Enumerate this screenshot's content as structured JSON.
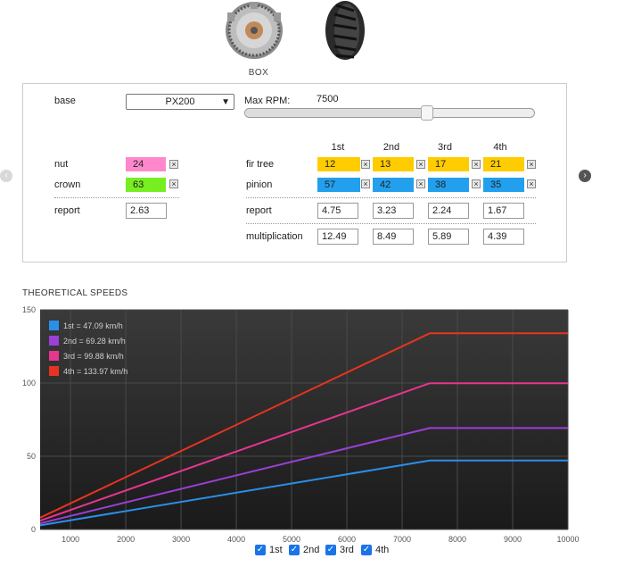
{
  "box_title": "BOX",
  "config": {
    "base_label": "base",
    "base_value": "PX200",
    "max_rpm_label": "Max RPM:",
    "max_rpm_value": "7500",
    "slider_fraction": 0.63
  },
  "gear_headers": [
    "1st",
    "2nd",
    "3rd",
    "4th"
  ],
  "left": {
    "nut_label": "nut",
    "nut_value": "24",
    "crown_label": "crown",
    "crown_value": "63",
    "report_label": "report",
    "report_value": "2.63"
  },
  "right": {
    "fir_tree_label": "fir tree",
    "pinion_label": "pinion",
    "report_label": "report",
    "multiplication_label": "multiplication",
    "fir_tree": [
      "12",
      "13",
      "17",
      "21"
    ],
    "pinion": [
      "57",
      "42",
      "38",
      "35"
    ],
    "report": [
      "4.75",
      "3.23",
      "2.24",
      "1.67"
    ],
    "multiplication": [
      "12.49",
      "8.49",
      "5.89",
      "4.39"
    ]
  },
  "speeds_title": "THEORETICAL SPEEDS",
  "chart_data": {
    "type": "line",
    "x": [
      450,
      7500,
      10000
    ],
    "xlim": [
      450,
      10000
    ],
    "ylim": [
      0,
      150
    ],
    "xticks": [
      1000,
      2000,
      3000,
      4000,
      5000,
      6000,
      7000,
      8000,
      9000,
      10000
    ],
    "yticks": [
      0,
      50,
      100,
      150
    ],
    "grid": true,
    "legend_position": "top-left",
    "series": [
      {
        "name": "1st = 47.09 km/h",
        "color": "#2a8fe8",
        "values": [
          2.83,
          47.09,
          47.09
        ]
      },
      {
        "name": "2nd = 69.28 km/h",
        "color": "#9b3fd6",
        "values": [
          4.16,
          69.28,
          69.28
        ]
      },
      {
        "name": "3rd = 99.88 km/h",
        "color": "#e8358f",
        "values": [
          6.0,
          99.88,
          99.88
        ]
      },
      {
        "name": "4th = 133.97 km/h",
        "color": "#e8331f",
        "values": [
          8.04,
          133.97,
          133.97
        ]
      }
    ]
  },
  "toggles": [
    "1st",
    "2nd",
    "3rd",
    "4th"
  ],
  "icons": {
    "remove": "close-box-icon",
    "nav_left": "chevron-left-icon",
    "nav_right": "chevron-right-icon",
    "checkbox": "checkmark-icon",
    "select_arrow": "chevron-down-icon"
  }
}
